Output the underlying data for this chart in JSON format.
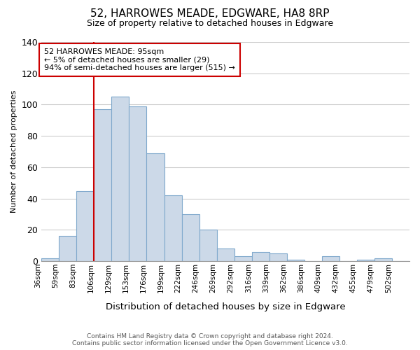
{
  "title": "52, HARROWES MEADE, EDGWARE, HA8 8RP",
  "subtitle": "Size of property relative to detached houses in Edgware",
  "xlabel": "Distribution of detached houses by size in Edgware",
  "ylabel": "Number of detached properties",
  "bar_color": "#ccd9e8",
  "bar_edge_color": "#7fa8cc",
  "background_color": "#ffffff",
  "grid_color": "#cccccc",
  "tick_labels": [
    "36sqm",
    "59sqm",
    "83sqm",
    "106sqm",
    "129sqm",
    "153sqm",
    "176sqm",
    "199sqm",
    "222sqm",
    "246sqm",
    "269sqm",
    "292sqm",
    "316sqm",
    "339sqm",
    "362sqm",
    "386sqm",
    "409sqm",
    "432sqm",
    "455sqm",
    "479sqm",
    "502sqm"
  ],
  "bar_heights": [
    2,
    16,
    45,
    97,
    105,
    99,
    69,
    42,
    30,
    20,
    8,
    3,
    6,
    5,
    1,
    0,
    3,
    0,
    1,
    2,
    0
  ],
  "ylim": [
    0,
    140
  ],
  "yticks": [
    0,
    20,
    40,
    60,
    80,
    100,
    120,
    140
  ],
  "red_line_color": "#cc0000",
  "annotation_box_edge": "#cc0000",
  "annotation_box_text": "52 HARROWES MEADE: 95sqm\n← 5% of detached houses are smaller (29)\n94% of semi-detached houses are larger (515) →",
  "footer_line1": "Contains HM Land Registry data © Crown copyright and database right 2024.",
  "footer_line2": "Contains public sector information licensed under the Open Government Licence v3.0."
}
